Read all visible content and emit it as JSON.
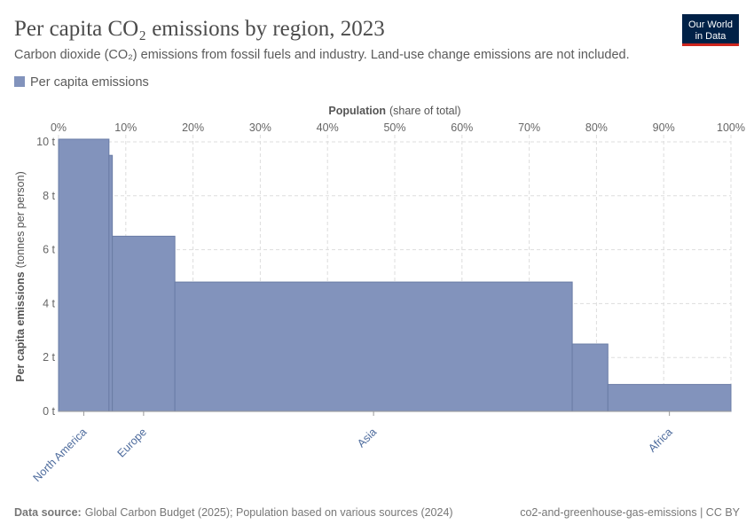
{
  "chart_data": {
    "type": "variable-width-bar",
    "title": "Per capita CO₂ emissions by region, 2023",
    "subtitle": "Carbon dioxide (CO₂) emissions from fossil fuels and industry. Land-use change emissions are not included.",
    "logo": [
      "Our World",
      "in Data"
    ],
    "x_label": {
      "bold": "Population",
      "rest": "(share of total)"
    },
    "y_label": {
      "bold": "Per capita emissions",
      "rest": "(tonnes per person)"
    },
    "categories": [
      "North America",
      null,
      "Europe",
      "Asia",
      null,
      "Africa"
    ],
    "bins": [
      0,
      7.5,
      8.0,
      17.3,
      76.4,
      81.7,
      100
    ],
    "series": [
      {
        "name": "Per capita emissions",
        "color": "#8293bc",
        "values": [
          10.1,
          9.5,
          6.5,
          4.8,
          2.5,
          1.0
        ]
      }
    ],
    "xlim": [
      0,
      100
    ],
    "xticks": [
      {
        "value": 0,
        "label": "0%"
      },
      {
        "value": 10,
        "label": "10%"
      },
      {
        "value": 20,
        "label": "20%"
      },
      {
        "value": 30,
        "label": "30%"
      },
      {
        "value": 40,
        "label": "40%"
      },
      {
        "value": 50,
        "label": "50%"
      },
      {
        "value": 60,
        "label": "60%"
      },
      {
        "value": 70,
        "label": "70%"
      },
      {
        "value": 80,
        "label": "80%"
      },
      {
        "value": 90,
        "label": "90%"
      },
      {
        "value": 100,
        "label": "100%"
      }
    ],
    "ylim": [
      0,
      10
    ],
    "yticks": [
      {
        "value": 0,
        "label": "0 t"
      },
      {
        "value": 2,
        "label": "2 t"
      },
      {
        "value": 4,
        "label": "4 t"
      },
      {
        "value": 6,
        "label": "6 t"
      },
      {
        "value": 8,
        "label": "8 t"
      },
      {
        "value": 10,
        "label": "10 t"
      }
    ],
    "grid": true,
    "source": {
      "bold": "Data source:",
      "rest": "Global Carbon Budget (2025); Population based on various sources (2024)"
    },
    "license": "co2-and-greenhouse-gas-emissions | CC BY"
  }
}
